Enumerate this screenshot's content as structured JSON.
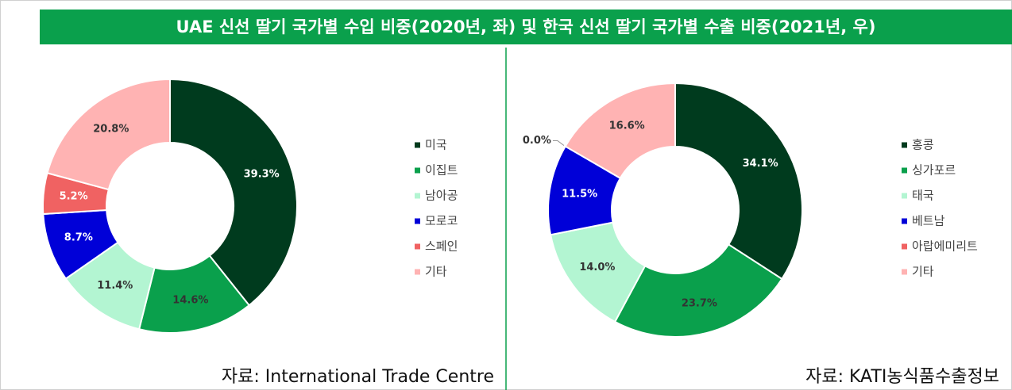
{
  "title": "UAE 신선 딸기 국가별 수입 비중(2020년, 좌) 및 한국 신선 딸기 국가별 수출 비중(2021년, 우)",
  "chart_data": [
    {
      "type": "donut",
      "categories": [
        "미국",
        "이집트",
        "남아공",
        "모로코",
        "스페인",
        "기타"
      ],
      "values": [
        39.3,
        14.6,
        11.4,
        8.7,
        5.2,
        20.8
      ],
      "value_labels": [
        "39.3%",
        "14.6%",
        "11.4%",
        "8.7%",
        "5.2%",
        "20.8%"
      ],
      "colors": [
        "#003b1e",
        "#0aa04c",
        "#b3f5d2",
        "#0000d8",
        "#f06262",
        "#ffb3b3"
      ],
      "label_colors": [
        "#ffffff",
        "#333333",
        "#333333",
        "#ffffff",
        "#ffffff",
        "#333333"
      ],
      "source": "자료: International Trade Centre"
    },
    {
      "type": "donut",
      "categories": [
        "홍콩",
        "싱가포르",
        "태국",
        "베트남",
        "아랍에미리트",
        "기타"
      ],
      "values": [
        34.1,
        23.7,
        14,
        11.5,
        0,
        16.6
      ],
      "value_labels": [
        "34.1%",
        "23.7%",
        "14.0%",
        "11.5%",
        "0.0%",
        "16.6%"
      ],
      "colors": [
        "#003b1e",
        "#0aa04c",
        "#b3f5d2",
        "#0000d8",
        "#f06262",
        "#ffb3b3"
      ],
      "label_colors": [
        "#ffffff",
        "#333333",
        "#333333",
        "#ffffff",
        "#333333",
        "#333333"
      ],
      "source": "자료: KATI농식품수출정보"
    }
  ]
}
